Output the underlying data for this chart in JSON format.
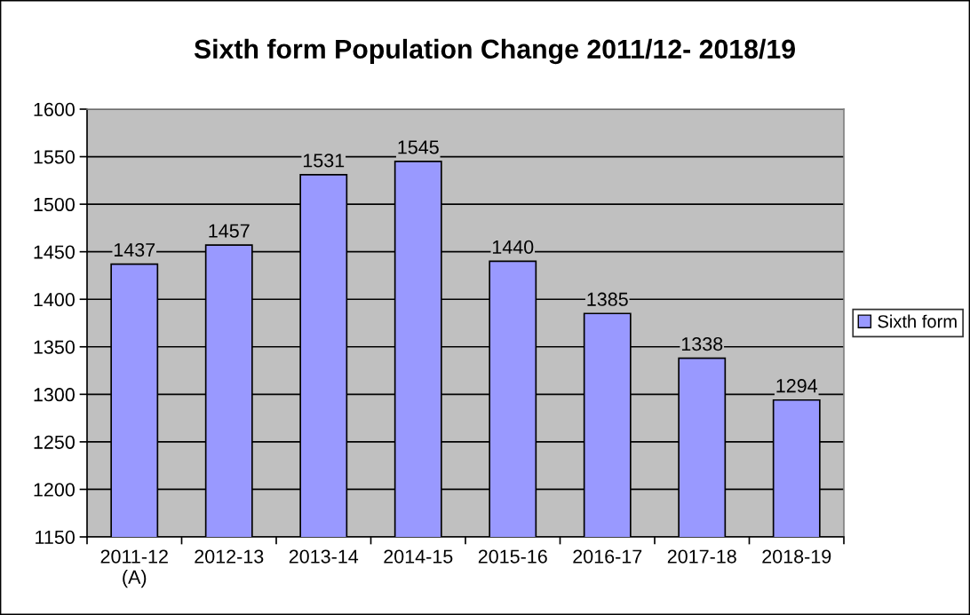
{
  "chart_data": {
    "type": "bar",
    "title": "Sixth form Population Change 2011/12- 2018/19",
    "categories": [
      "2011-12\n(A)",
      "2012-13",
      "2013-14",
      "2014-15",
      "2015-16",
      "2016-17",
      "2017-18",
      "2018-19"
    ],
    "series": [
      {
        "name": "Sixth form",
        "color": "#9999ff",
        "values": [
          1437,
          1457,
          1531,
          1545,
          1440,
          1385,
          1338,
          1294
        ]
      }
    ],
    "ylim": [
      1150,
      1600
    ],
    "yticks": [
      1150,
      1200,
      1250,
      1300,
      1350,
      1400,
      1450,
      1500,
      1550,
      1600
    ],
    "grid": "y",
    "legend": "right",
    "data_labels": true
  }
}
